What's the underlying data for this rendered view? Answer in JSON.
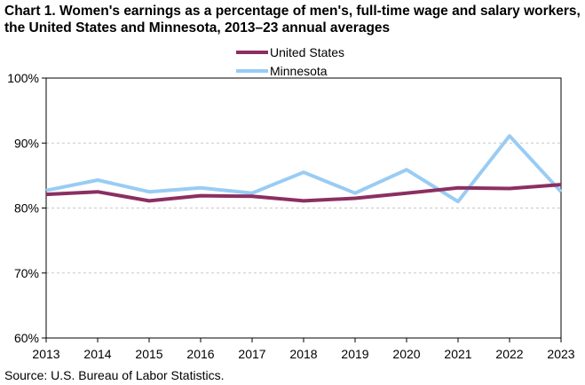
{
  "chart_data": {
    "type": "line",
    "title": "Chart 1. Women's earnings as a percentage of men's, full-time wage and salary workers, the United States and Minnesota, 2013–23 annual averages",
    "x": [
      2013,
      2014,
      2015,
      2016,
      2017,
      2018,
      2019,
      2020,
      2021,
      2022,
      2023
    ],
    "x_tick_labels": [
      "2013",
      "2014",
      "2015",
      "2016",
      "2017",
      "2018",
      "2019",
      "2020",
      "2021",
      "2022",
      "2023"
    ],
    "y_tick_labels": [
      "60%",
      "70%",
      "80%",
      "90%",
      "100%"
    ],
    "y_ticks": [
      60,
      70,
      80,
      90,
      100
    ],
    "ylim": [
      60,
      100
    ],
    "xlabel": "",
    "ylabel": "",
    "grid": true,
    "legend_position": "top-center",
    "series": [
      {
        "name": "United States",
        "color": "#8B2F62",
        "values": [
          82.1,
          82.5,
          81.1,
          81.9,
          81.8,
          81.1,
          81.5,
          82.3,
          83.1,
          83.0,
          83.6
        ]
      },
      {
        "name": "Minnesota",
        "color": "#99CCF4",
        "values": [
          82.7,
          84.3,
          82.5,
          83.1,
          82.3,
          85.5,
          82.3,
          85.9,
          81.0,
          91.1,
          82.5
        ]
      }
    ],
    "source": "Source:  U.S. Bureau of Labor Statistics."
  }
}
